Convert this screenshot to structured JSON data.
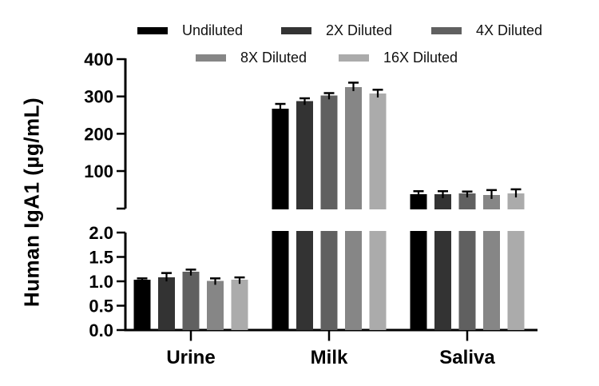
{
  "figure": {
    "background": "#ffffff"
  },
  "chart_data": {
    "type": "bar",
    "title": "",
    "ylabel": "Human IgA1 (µg/mL)",
    "xlabel": "",
    "grid": false,
    "categories": [
      "Urine",
      "Milk",
      "Saliva"
    ],
    "series": [
      {
        "name": "Undiluted",
        "color": "#000000",
        "values": [
          1.03,
          267,
          38
        ],
        "errors": [
          0.03,
          13,
          8
        ]
      },
      {
        "name": "2X Diluted",
        "color": "#333333",
        "values": [
          1.08,
          288,
          38
        ],
        "errors": [
          0.09,
          7,
          8
        ]
      },
      {
        "name": "4X Diluted",
        "color": "#606060",
        "values": [
          1.2,
          303,
          40
        ],
        "errors": [
          0.04,
          6,
          5
        ]
      },
      {
        "name": "8X Diluted",
        "color": "#868686",
        "values": [
          1.01,
          325,
          36
        ],
        "errors": [
          0.05,
          12,
          13
        ]
      },
      {
        "name": "16X Diluted",
        "color": "#ababab",
        "values": [
          1.03,
          308,
          40
        ],
        "errors": [
          0.05,
          10,
          11
        ]
      }
    ],
    "axis_break": true,
    "top_axis": {
      "range": [
        0,
        400
      ],
      "tick_values": [
        400,
        300,
        200,
        100
      ],
      "tick_labels": [
        "400",
        "300",
        "200",
        "100"
      ]
    },
    "bottom_axis": {
      "range": [
        0,
        2
      ],
      "tick_values": [
        2.0,
        1.5,
        1.0,
        0.5,
        0.0
      ],
      "tick_labels": [
        "2.0",
        "1.5",
        "1.0",
        "0.5",
        "0.0"
      ]
    },
    "legend": {
      "position": "top",
      "rows": [
        [
          "Undiluted",
          "2X Diluted",
          "4X Diluted"
        ],
        [
          "8X Diluted",
          "16X Diluted"
        ]
      ]
    }
  }
}
